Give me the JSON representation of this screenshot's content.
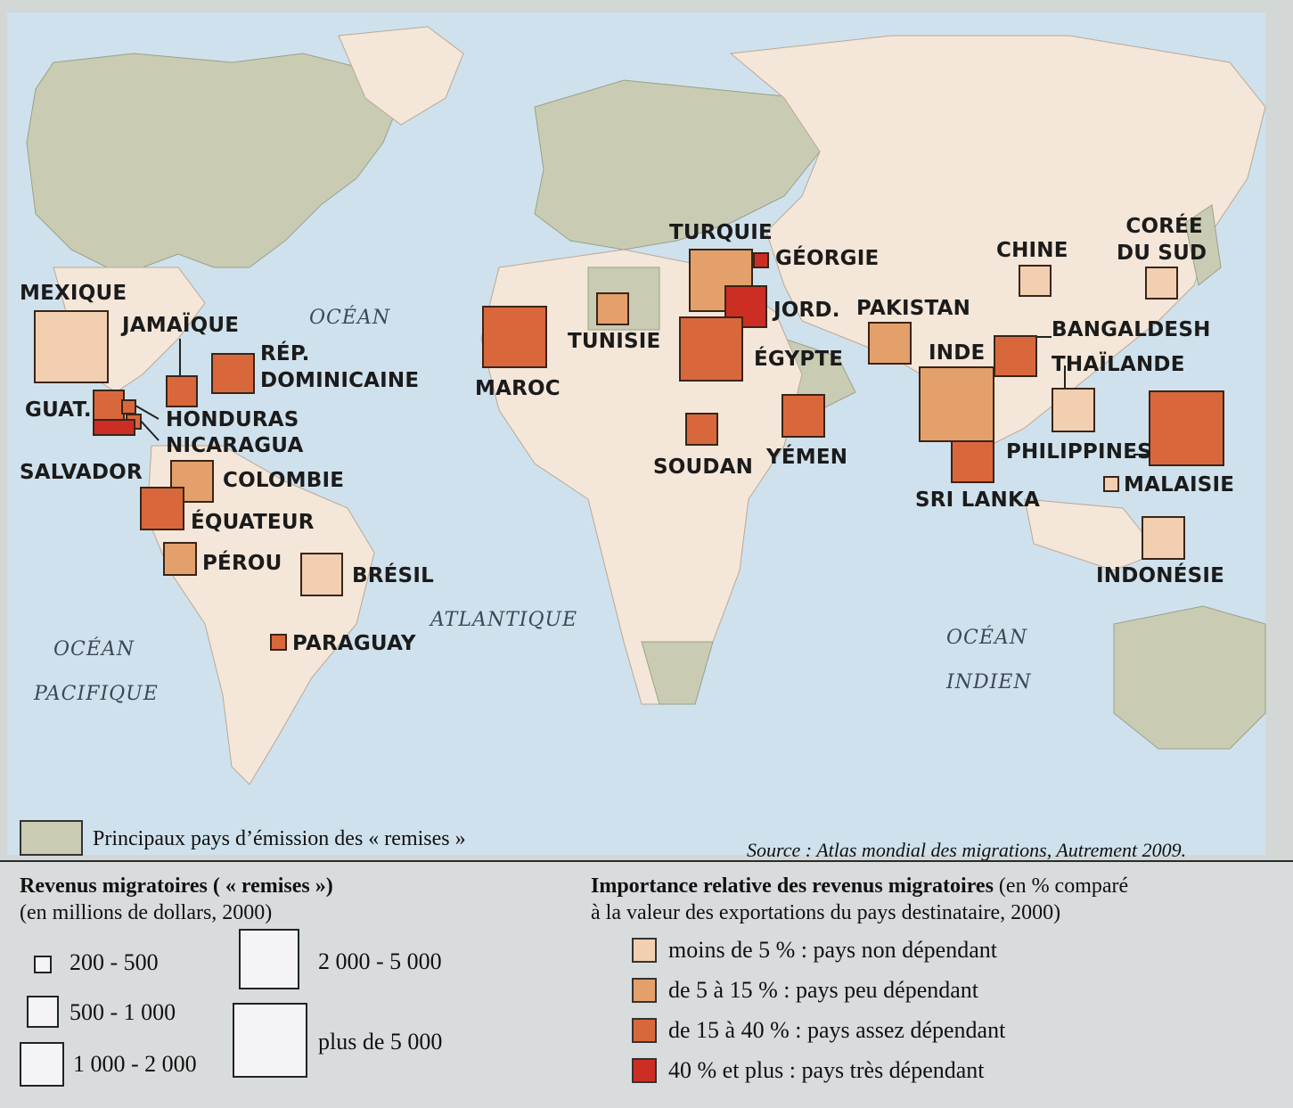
{
  "map": {
    "oceans": [
      {
        "id": "atlantic-ocean-word",
        "text": "OCÉAN"
      },
      {
        "id": "atlantic-name",
        "text": "ATLANTIQUE"
      },
      {
        "id": "pacific-ocean-word",
        "text": "OCÉAN"
      },
      {
        "id": "pacific-name",
        "text": "PACIFIQUE"
      },
      {
        "id": "indian-ocean-word",
        "text": "OCÉAN"
      },
      {
        "id": "indian-name",
        "text": "INDIEN"
      }
    ],
    "countries": [
      {
        "id": "mexique",
        "label": "MEXIQUE",
        "size_class": "plus de 5 000",
        "dependency": "moins de 5 %"
      },
      {
        "id": "jamaique",
        "label": "JAMAÏQUE",
        "size_class": "500 - 1 000",
        "dependency": "de 15 à 40 %"
      },
      {
        "id": "rep-dominicaine",
        "label": "RÉP.\nDOMINICAINE",
        "size_class": "1 000 - 2 000",
        "dependency": "de 15 à 40 %"
      },
      {
        "id": "guatemala",
        "label": "GUAT.",
        "size_class": "500 - 1 000",
        "dependency": "de 15 à 40 %"
      },
      {
        "id": "honduras",
        "label": "HONDURAS",
        "size_class": "200 - 500",
        "dependency": "de 15 à 40 %"
      },
      {
        "id": "nicaragua",
        "label": "NICARAGUA",
        "size_class": "200 - 500",
        "dependency": "de 15 à 40 %"
      },
      {
        "id": "salvador",
        "label": "SALVADOR",
        "size_class": "1 000 - 2 000",
        "dependency": "40 % et plus"
      },
      {
        "id": "colombie",
        "label": "COLOMBIE",
        "size_class": "1 000 - 2 000",
        "dependency": "de 5 à 15 %"
      },
      {
        "id": "equateur",
        "label": "ÉQUATEUR",
        "size_class": "1 000 - 2 000",
        "dependency": "de 15 à 40 %"
      },
      {
        "id": "perou",
        "label": "PÉROU",
        "size_class": "500 - 1 000",
        "dependency": "de 5 à 15 %"
      },
      {
        "id": "bresil",
        "label": "BRÉSIL",
        "size_class": "1 000 - 2 000",
        "dependency": "moins de 5 %"
      },
      {
        "id": "paraguay",
        "label": "PARAGUAY",
        "size_class": "200 - 500",
        "dependency": "de 15 à 40 %"
      },
      {
        "id": "maroc",
        "label": "MAROC",
        "size_class": "2 000 - 5 000",
        "dependency": "de 15 à 40 %"
      },
      {
        "id": "tunisie",
        "label": "TUNISIE",
        "size_class": "500 - 1 000",
        "dependency": "de 5 à 15 %"
      },
      {
        "id": "turquie",
        "label": "TURQUIE",
        "size_class": "2 000 - 5 000",
        "dependency": "de 5 à 15 %"
      },
      {
        "id": "georgie",
        "label": "GÉORGIE",
        "size_class": "200 - 500",
        "dependency": "40 % et plus"
      },
      {
        "id": "jordanie",
        "label": "JORD.",
        "size_class": "1 000 - 2 000",
        "dependency": "40 % et plus"
      },
      {
        "id": "egypte",
        "label": "ÉGYPTE",
        "size_class": "2 000 - 5 000",
        "dependency": "de 15 à 40 %"
      },
      {
        "id": "soudan",
        "label": "SOUDAN",
        "size_class": "500 - 1 000",
        "dependency": "de 15 à 40 %"
      },
      {
        "id": "yemen",
        "label": "YÉMEN",
        "size_class": "1 000 - 2 000",
        "dependency": "de 15 à 40 %"
      },
      {
        "id": "pakistan",
        "label": "PAKISTAN",
        "size_class": "1 000 - 2 000",
        "dependency": "de 5 à 15 %"
      },
      {
        "id": "inde",
        "label": "INDE",
        "size_class": "plus de 5 000",
        "dependency": "de 5 à 15 %"
      },
      {
        "id": "sri-lanka",
        "label": "SRI LANKA",
        "size_class": "1 000 - 2 000",
        "dependency": "de 15 à 40 %"
      },
      {
        "id": "bangladesh",
        "label": "BANGALDESH",
        "size_class": "1 000 - 2 000",
        "dependency": "de 15 à 40 %"
      },
      {
        "id": "chine",
        "label": "CHINE",
        "size_class": "500 - 1 000",
        "dependency": "moins de 5 %"
      },
      {
        "id": "coree-du-sud",
        "label": "CORÉE\nDU SUD",
        "size_class": "500 - 1 000",
        "dependency": "moins de 5 %"
      },
      {
        "id": "thailande",
        "label": "THAÏLANDE",
        "size_class": "1 000 - 2 000",
        "dependency": "moins de 5 %"
      },
      {
        "id": "philippines",
        "label": "PHILIPPINES",
        "size_class": "plus de 5 000",
        "dependency": "de 15 à 40 %"
      },
      {
        "id": "malaisie",
        "label": "MALAISIE",
        "size_class": "200 - 500",
        "dependency": "moins de 5 %"
      },
      {
        "id": "indonesie",
        "label": "INDONÉSIE",
        "size_class": "1 000 - 2 000",
        "dependency": "moins de 5 %"
      }
    ]
  },
  "emitters_legend": "Principaux pays d’émission des « remises »",
  "source": "Source : Atlas mondial des migrations, Autrement 2009.",
  "legend": {
    "size_title": "Revenus migratoires ( « remises »)",
    "size_subtitle": "(en millions de dollars, 2000)",
    "sizes": [
      {
        "id": "s1",
        "label": "200 - 500"
      },
      {
        "id": "s2",
        "label": "500 - 1 000"
      },
      {
        "id": "s3",
        "label": "1 000 - 2 000"
      },
      {
        "id": "s4",
        "label": "2 000 - 5 000"
      },
      {
        "id": "s5",
        "label": "plus de 5 000"
      }
    ],
    "importance_title": "Importance relative des revenus migratoires",
    "importance_subtitle_a": "(en % comparé",
    "importance_subtitle_b": "à la valeur des exportations du pays destinataire, 2000)",
    "classes": [
      {
        "label": "moins de 5 % : pays non dépendant",
        "color": "#f1cfb0"
      },
      {
        "label": "de 5 à 15 % : pays peu dépendant",
        "color": "#e4a06a"
      },
      {
        "label": "de 15 à 40 % : pays assez dépendant",
        "color": "#d8683c"
      },
      {
        "label": "40 % et plus : pays très dépendant",
        "color": "#cc2e24"
      }
    ]
  },
  "colors": {
    "ocean": "#cfe1ec",
    "land": "#f4e6d8",
    "emitter": "#c9ccb3",
    "border": "#3a2418"
  }
}
